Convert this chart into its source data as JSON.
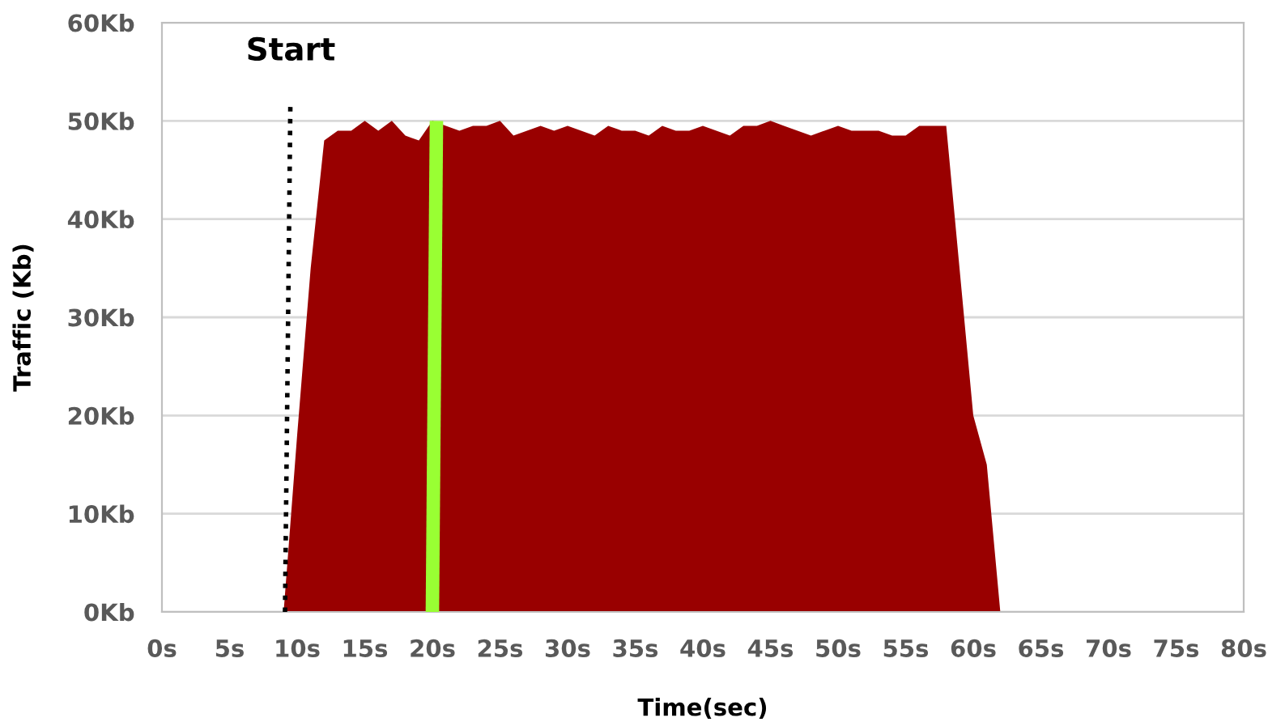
{
  "chart_data": {
    "type": "area",
    "xlabel": "Time(sec)",
    "ylabel": "Traffic (Kb)",
    "xlim": [
      0,
      80
    ],
    "ylim": [
      0,
      60
    ],
    "xticks": [
      {
        "value": 0,
        "label": "0s"
      },
      {
        "value": 5,
        "label": "5s"
      },
      {
        "value": 10,
        "label": "10s"
      },
      {
        "value": 15,
        "label": "15s"
      },
      {
        "value": 20,
        "label": "20s"
      },
      {
        "value": 25,
        "label": "25s"
      },
      {
        "value": 30,
        "label": "30s"
      },
      {
        "value": 35,
        "label": "35s"
      },
      {
        "value": 40,
        "label": "40s"
      },
      {
        "value": 45,
        "label": "45s"
      },
      {
        "value": 50,
        "label": "50s"
      },
      {
        "value": 55,
        "label": "55s"
      },
      {
        "value": 60,
        "label": "60s"
      },
      {
        "value": 65,
        "label": "65s"
      },
      {
        "value": 70,
        "label": "70s"
      },
      {
        "value": 75,
        "label": "75s"
      },
      {
        "value": 80,
        "label": "80s"
      }
    ],
    "yticks": [
      {
        "value": 0,
        "label": "0Kb"
      },
      {
        "value": 10,
        "label": "10Kb"
      },
      {
        "value": 20,
        "label": "20Kb"
      },
      {
        "value": 30,
        "label": "30Kb"
      },
      {
        "value": 40,
        "label": "40Kb"
      },
      {
        "value": 50,
        "label": "50Kb"
      },
      {
        "value": 60,
        "label": "60Kb"
      }
    ],
    "grid": "y",
    "series": [
      {
        "color": "#990000",
        "x": [
          9,
          10,
          11,
          12,
          13,
          14,
          15,
          16,
          17,
          18,
          19,
          20,
          21,
          22,
          23,
          24,
          25,
          26,
          27,
          28,
          29,
          30,
          31,
          32,
          33,
          34,
          35,
          36,
          37,
          38,
          39,
          40,
          41,
          42,
          43,
          44,
          45,
          46,
          47,
          48,
          49,
          50,
          51,
          52,
          53,
          54,
          55,
          56,
          57,
          58,
          60,
          61,
          62
        ],
        "values": [
          0,
          18,
          35,
          48,
          49,
          49,
          50,
          49,
          50,
          48.5,
          48,
          50,
          49.5,
          49,
          49.5,
          49.5,
          50,
          48.5,
          49,
          49.5,
          49,
          49.5,
          49,
          48.5,
          49.5,
          49,
          49,
          48.5,
          49.5,
          49,
          49,
          49.5,
          49,
          48.5,
          49.5,
          49.5,
          50,
          49.5,
          49,
          48.5,
          49,
          49.5,
          49,
          49,
          49,
          48.5,
          48.5,
          49.5,
          49.5,
          49.5,
          20,
          15,
          0
        ]
      },
      {
        "type": "line",
        "color": "#99ff33",
        "x": [
          20,
          20.3
        ],
        "values": [
          0,
          50
        ]
      },
      {
        "type": "line",
        "color": "#000000",
        "line_style": "dotted",
        "x": [
          9.1,
          9.5
        ],
        "values": [
          0,
          52
        ]
      }
    ],
    "annotations": [
      "Start"
    ]
  }
}
